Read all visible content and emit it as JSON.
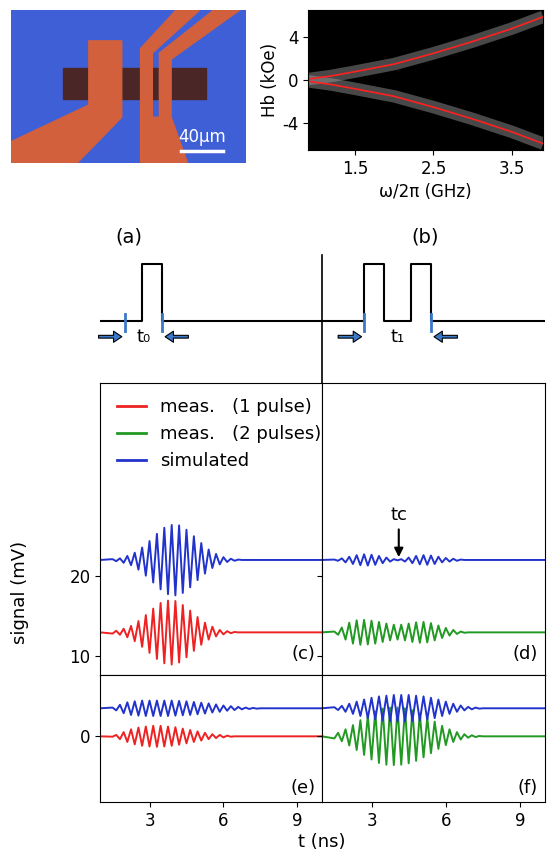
{
  "chart_data": [
    {
      "type": "image",
      "title": "(a)",
      "scale_bar": "40μm"
    },
    {
      "type": "line",
      "title": "(b)",
      "xlabel": "ω/2π (GHz)",
      "ylabel": "Hb (kOe)",
      "xlim": [
        0.9,
        3.9
      ],
      "xticks": [
        1.5,
        2.5,
        3.5
      ],
      "ylim": [
        -6.5,
        6.5
      ],
      "yticks": [
        -4,
        0,
        4
      ],
      "x": [
        0.9,
        1.2,
        1.5,
        2.0,
        2.5,
        3.0,
        3.5,
        3.9
      ],
      "series": [
        {
          "color": "#ff2020",
          "values": [
            0.1,
            0.4,
            0.8,
            1.5,
            2.5,
            3.6,
            4.8,
            5.9
          ]
        },
        {
          "color": "#ff2020",
          "values": [
            -0.1,
            -0.4,
            -0.8,
            -1.5,
            -2.5,
            -3.6,
            -4.8,
            -5.9
          ]
        }
      ]
    },
    {
      "type": "schematic",
      "label": "t₀",
      "pulses": 1
    },
    {
      "type": "schematic",
      "label": "t₁",
      "pulses": 2
    },
    {
      "type": "line",
      "title": "(c)",
      "ylabel": "signal (mV)",
      "legend": "upper left",
      "tick_labels": "y",
      "xlim": [
        1.0,
        10.0
      ],
      "xticks": [
        3,
        6,
        9
      ],
      "ylim": [
        7.7,
        44
      ],
      "yticks": [
        10,
        20
      ],
      "x": [
        1.0,
        1.5,
        1.65,
        1.8,
        1.95,
        2.1,
        2.25,
        2.4,
        2.55,
        2.7,
        2.85,
        3.0,
        3.15,
        3.3,
        3.45,
        3.6,
        3.75,
        3.9,
        4.05,
        4.2,
        4.35,
        4.5,
        4.65,
        4.8,
        4.95,
        5.1,
        5.25,
        5.4,
        5.55,
        5.7,
        5.85,
        6.0,
        6.15,
        6.3,
        6.45,
        6.6,
        6.75,
        6.9,
        7.05,
        7.2,
        7.35,
        7.5,
        10.0
      ],
      "series": [
        {
          "name": "meas.   (1 pulse)",
          "color": "#ee2222",
          "values": [
            13,
            12.85,
            13.2,
            12.7,
            13.45,
            12.4,
            13.8,
            11.9,
            14.4,
            11.2,
            15.15,
            10.45,
            15.95,
            9.7,
            16.65,
            9.15,
            16.95,
            9.0,
            16.9,
            9.25,
            16.4,
            9.9,
            15.7,
            10.7,
            14.9,
            11.45,
            14.2,
            12.1,
            13.7,
            12.5,
            13.3,
            12.75,
            13.15,
            12.9,
            13.05,
            13,
            13,
            13,
            13,
            13,
            13,
            13,
            13
          ]
        },
        {
          "color": "#2233cc",
          "values": [
            22,
            22.1,
            21.85,
            22.2,
            21.65,
            22.5,
            21.35,
            22.9,
            20.8,
            23.55,
            20.05,
            24.35,
            19.2,
            25.25,
            18.35,
            26.0,
            17.75,
            26.35,
            17.6,
            26.3,
            17.9,
            25.75,
            18.6,
            24.95,
            19.5,
            24.1,
            20.3,
            23.3,
            21.0,
            22.75,
            21.45,
            22.35,
            21.75,
            22.15,
            21.9,
            22.05,
            22,
            22,
            22,
            22,
            22,
            22,
            22
          ]
        }
      ]
    },
    {
      "type": "line",
      "title": "(d)",
      "tick_labels": false,
      "xlim": [
        1.0,
        10.0
      ],
      "xticks": [
        3,
        6,
        9
      ],
      "ylim": [
        7.7,
        44
      ],
      "yticks": [
        10,
        20
      ],
      "annotations": [
        {
          "text": "tc",
          "x": 4.1,
          "y": 22
        }
      ],
      "x": [
        1.0,
        1.5,
        1.65,
        1.8,
        1.95,
        2.1,
        2.25,
        2.4,
        2.55,
        2.7,
        2.85,
        3.0,
        3.15,
        3.3,
        3.45,
        3.6,
        3.75,
        3.9,
        4.05,
        4.2,
        4.35,
        4.5,
        4.65,
        4.8,
        4.95,
        5.1,
        5.25,
        5.4,
        5.55,
        5.7,
        5.85,
        6.0,
        6.15,
        6.3,
        6.45,
        6.6,
        6.75,
        6.9,
        7.05,
        7.2,
        7.35,
        7.5,
        10.0
      ],
      "series": [
        {
          "name": "meas.   (2 pulses)",
          "color": "#229922",
          "values": [
            13,
            13.1,
            12.7,
            13.6,
            12.1,
            14.2,
            11.6,
            14.5,
            11.45,
            14.55,
            11.5,
            14.45,
            11.6,
            14.3,
            11.8,
            14.1,
            12.0,
            13.95,
            12.1,
            13.95,
            12.0,
            14.1,
            11.8,
            14.25,
            11.7,
            14.3,
            11.75,
            14.15,
            12.0,
            13.85,
            12.3,
            13.55,
            12.6,
            13.3,
            12.8,
            13.1,
            12.95,
            13,
            13,
            13,
            13,
            13,
            13
          ]
        },
        {
          "name": "simulated",
          "color": "#2233cc",
          "values": [
            22,
            22.05,
            21.9,
            22.2,
            21.7,
            22.4,
            21.5,
            22.6,
            21.35,
            22.7,
            21.3,
            22.65,
            21.4,
            22.5,
            21.6,
            22.3,
            21.8,
            22.1,
            21.95,
            22.1,
            21.8,
            22.3,
            21.6,
            22.5,
            21.45,
            22.6,
            21.4,
            22.55,
            21.5,
            22.4,
            21.7,
            22.25,
            21.8,
            22.15,
            21.9,
            22.05,
            22,
            22,
            22,
            22,
            22,
            22,
            22
          ]
        }
      ]
    },
    {
      "type": "line",
      "title": "(e)",
      "xlabel": "t (ns)",
      "xlim": [
        1.0,
        10.0
      ],
      "xticks": [
        3,
        6,
        9
      ],
      "ylim": [
        -9.4,
        8.75
      ],
      "yticks": [
        0
      ],
      "x": [
        1.0,
        1.5,
        1.65,
        1.8,
        1.95,
        2.1,
        2.25,
        2.4,
        2.55,
        2.7,
        2.85,
        3.0,
        3.15,
        3.3,
        3.45,
        3.6,
        3.75,
        3.9,
        4.05,
        4.2,
        4.35,
        4.5,
        4.65,
        4.8,
        4.95,
        5.1,
        5.25,
        5.4,
        5.55,
        5.7,
        5.85,
        6.0,
        6.15,
        6.3,
        6.45,
        6.6,
        6.75,
        6.9,
        7.05,
        7.2,
        7.35,
        7.5,
        10.0
      ],
      "series": [
        {
          "color": "#ee2222",
          "values": [
            0,
            -0.05,
            0.2,
            -0.4,
            0.6,
            -0.8,
            1.0,
            -1.15,
            1.25,
            -1.35,
            1.4,
            -1.45,
            1.5,
            -1.5,
            1.5,
            -1.45,
            1.4,
            -1.35,
            1.3,
            -1.2,
            1.1,
            -1.0,
            0.9,
            -0.8,
            0.7,
            -0.6,
            0.5,
            -0.4,
            0.3,
            -0.25,
            0.2,
            -0.15,
            0.1,
            -0.05,
            0,
            0,
            0,
            0,
            0,
            0,
            0,
            0,
            0
          ]
        },
        {
          "color": "#2233cc",
          "values": [
            4,
            4.1,
            3.7,
            4.5,
            3.3,
            4.85,
            3.05,
            5.0,
            2.95,
            5.1,
            2.9,
            5.1,
            2.9,
            5.1,
            2.9,
            5.1,
            2.9,
            5.1,
            2.95,
            5.05,
            3.0,
            5.0,
            3.05,
            4.9,
            3.15,
            4.8,
            3.25,
            4.7,
            3.4,
            4.55,
            3.5,
            4.4,
            3.65,
            4.3,
            3.75,
            4.2,
            3.85,
            4.1,
            3.9,
            4.05,
            3.95,
            4.0,
            4
          ]
        }
      ]
    },
    {
      "type": "line",
      "title": "(f)",
      "tick_labels": "x",
      "xlim": [
        1.0,
        10.0
      ],
      "xticks": [
        3,
        6,
        9
      ],
      "ylim": [
        -9.4,
        8.75
      ],
      "yticks": [
        0
      ],
      "x": [
        1.0,
        1.5,
        1.65,
        1.8,
        1.95,
        2.1,
        2.25,
        2.4,
        2.55,
        2.7,
        2.85,
        3.0,
        3.15,
        3.3,
        3.45,
        3.6,
        3.75,
        3.9,
        4.05,
        4.2,
        4.35,
        4.5,
        4.65,
        4.8,
        4.95,
        5.1,
        5.25,
        5.4,
        5.55,
        5.7,
        5.85,
        6.0,
        6.15,
        6.3,
        6.45,
        6.6,
        6.75,
        6.9,
        7.05,
        7.2,
        7.35,
        7.5,
        10.0
      ],
      "series": [
        {
          "color": "#229922",
          "values": [
            0,
            -0.3,
            0.5,
            -0.7,
            1.0,
            -1.3,
            1.6,
            -1.95,
            2.3,
            -2.65,
            3.0,
            -3.3,
            3.55,
            -3.8,
            3.95,
            -4.05,
            4.1,
            -4.1,
            4.1,
            -4.05,
            4.0,
            -3.85,
            3.7,
            -3.5,
            3.25,
            -3.0,
            2.7,
            -2.4,
            2.1,
            -1.8,
            1.5,
            -1.25,
            1.0,
            -0.8,
            0.6,
            -0.45,
            0.3,
            -0.2,
            0.15,
            -0.1,
            0.05,
            0,
            0
          ]
        },
        {
          "color": "#2233cc",
          "values": [
            4,
            4.15,
            3.75,
            4.35,
            3.5,
            4.65,
            3.2,
            4.95,
            2.9,
            5.25,
            2.6,
            5.5,
            2.4,
            5.7,
            2.25,
            5.8,
            2.15,
            5.9,
            2.1,
            5.9,
            2.1,
            5.9,
            2.15,
            5.8,
            2.25,
            5.7,
            2.4,
            5.5,
            2.6,
            5.25,
            2.9,
            4.95,
            3.2,
            4.65,
            3.5,
            4.4,
            3.7,
            4.2,
            3.85,
            4.1,
            3.95,
            4.0,
            4
          ]
        }
      ]
    }
  ]
}
